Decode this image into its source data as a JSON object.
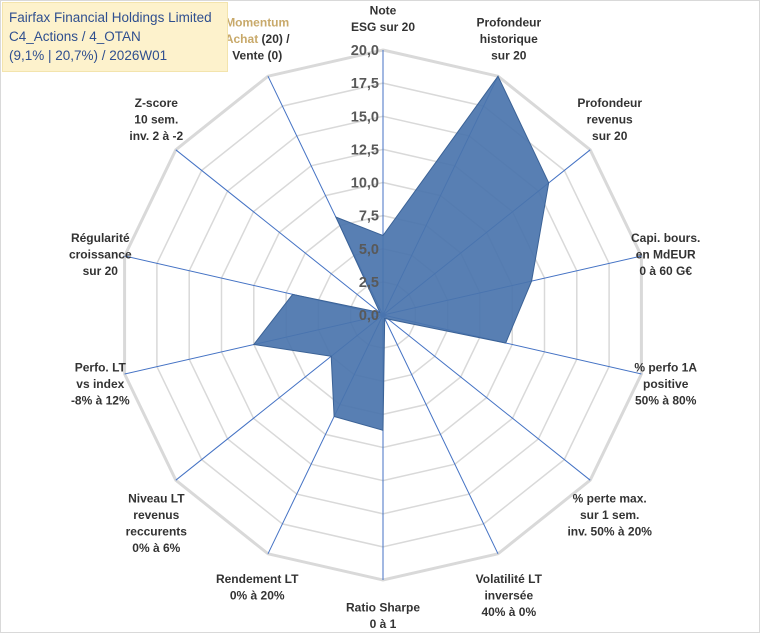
{
  "title_box": {
    "line1": "Fairfax Financial Holdings Limited",
    "line2": "C4_Actions / 4_OTAN",
    "line3": "(9,1% | 20,7%) / 2026W01"
  },
  "chart_data": {
    "type": "radar",
    "rmin": 0,
    "rmax": 20,
    "tick_values": [
      0,
      2.5,
      5,
      7.5,
      10,
      12.5,
      15,
      17.5,
      20
    ],
    "tick_labels": [
      "0,0",
      "2,5",
      "5,0",
      "7,5",
      "10,0",
      "12,5",
      "15,0",
      "17,5",
      "20,0"
    ],
    "grid": true,
    "axes": [
      {
        "label_lines": [
          "Note",
          "ESG sur 20"
        ],
        "value": 6.0
      },
      {
        "label_lines": [
          "Profondeur",
          "historique",
          "sur 20"
        ],
        "value": 20.0
      },
      {
        "label_lines": [
          "Profondeur",
          "revenus",
          "sur 20"
        ],
        "value": 16.0
      },
      {
        "label_lines": [
          "Capi. bours.",
          "en MdEUR",
          "0 à 60 G€"
        ],
        "value": 11.5
      },
      {
        "label_lines": [
          "% perfo 1A",
          "positive",
          "50% à 80%"
        ],
        "value": 9.5
      },
      {
        "label_lines": [
          "% perte max.",
          "sur 1 sem.",
          "inv. 50% à 20%"
        ],
        "value": 0.5
      },
      {
        "label_lines": [
          "Volatilité LT",
          "inversée",
          "40% à 0%"
        ],
        "value": 0.3
      },
      {
        "label_lines": [
          "Ratio Sharpe",
          "0 à 1"
        ],
        "value": 8.7
      },
      {
        "label_lines": [
          "Rendement LT",
          "0% à 20%"
        ],
        "value": 8.5
      },
      {
        "label_lines": [
          "Niveau LT",
          "revenus",
          "reccurents",
          "0% à 6%"
        ],
        "value": 5.0
      },
      {
        "label_lines": [
          "Perfo. LT",
          "vs index",
          "-8% à 12%"
        ],
        "value": 10.0
      },
      {
        "label_lines": [
          "Régularité",
          "croissance",
          "sur 20"
        ],
        "value": 7.0
      },
      {
        "label_lines": [
          "Z-score",
          "10 sem.",
          "inv. 2 à -2"
        ],
        "value": 0.3
      },
      {
        "label_lines": [
          "Momentum",
          "Achat (20) /",
          "Vente (0)"
        ],
        "value": 8.2
      }
    ],
    "series": [
      {
        "values": [
          6.0,
          20.0,
          16.0,
          11.5,
          9.5,
          0.5,
          0.3,
          8.7,
          8.5,
          5.0,
          10.0,
          7.0,
          0.3,
          8.2
        ]
      }
    ],
    "colors": {
      "fill": "#4a74ad",
      "stroke": "#3b6296",
      "grid": "#d9d9d9",
      "spoke": "#4472c4",
      "title_box": "#fdf2cc",
      "title_text": "#2f4f8f"
    }
  }
}
